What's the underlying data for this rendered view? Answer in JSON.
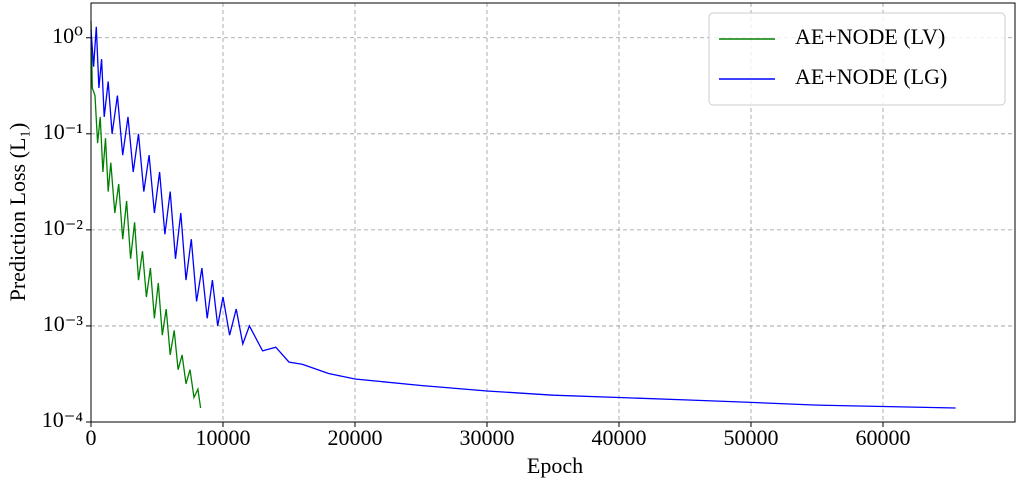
{
  "chart_data": {
    "type": "line",
    "x_label": "Epoch",
    "y_label": "Prediction Loss (L₁)",
    "xlim": [
      0,
      70000
    ],
    "ylim": [
      0.0001,
      2.3
    ],
    "log_y": true,
    "grid": true,
    "legend": "upper right",
    "xticks": [
      0,
      10000,
      20000,
      30000,
      40000,
      50000,
      60000
    ],
    "yticks": [
      {
        "value": 0.0001,
        "label": "10⁻⁴"
      },
      {
        "value": 0.001,
        "label": "10⁻³"
      },
      {
        "value": 0.01,
        "label": "10⁻²"
      },
      {
        "value": 0.1,
        "label": "10⁻¹"
      },
      {
        "value": 1,
        "label": "10⁰"
      }
    ],
    "series": [
      {
        "name": "AE+NODE (LV)",
        "color": "#008000",
        "x": [
          0,
          100,
          300,
          500,
          700,
          900,
          1100,
          1300,
          1500,
          1800,
          2100,
          2400,
          2700,
          3000,
          3300,
          3600,
          3900,
          4200,
          4500,
          4800,
          5100,
          5400,
          5700,
          6000,
          6300,
          6600,
          6900,
          7200,
          7500,
          7800,
          8100,
          8300
        ],
        "values": [
          1.5,
          0.3,
          0.25,
          0.08,
          0.15,
          0.04,
          0.09,
          0.025,
          0.05,
          0.015,
          0.03,
          0.008,
          0.02,
          0.005,
          0.012,
          0.003,
          0.006,
          0.002,
          0.004,
          0.0012,
          0.0028,
          0.0008,
          0.0015,
          0.0005,
          0.0009,
          0.00035,
          0.0005,
          0.00025,
          0.00035,
          0.00018,
          0.00022,
          0.00014
        ]
      },
      {
        "name": "AE+NODE (LG)",
        "color": "#0000ff",
        "x": [
          0,
          200,
          400,
          600,
          800,
          1000,
          1300,
          1600,
          2000,
          2400,
          2800,
          3200,
          3600,
          4000,
          4400,
          4800,
          5200,
          5600,
          6000,
          6400,
          6800,
          7200,
          7600,
          8000,
          8400,
          8800,
          9200,
          9600,
          10000,
          10500,
          11000,
          11500,
          12000,
          13000,
          14000,
          15000,
          16000,
          18000,
          20000,
          25000,
          30000,
          35000,
          40000,
          45000,
          50000,
          55000,
          60000,
          65500
        ],
        "values": [
          1.2,
          0.5,
          1.3,
          0.3,
          0.6,
          0.15,
          0.35,
          0.1,
          0.25,
          0.06,
          0.15,
          0.04,
          0.1,
          0.025,
          0.06,
          0.015,
          0.04,
          0.009,
          0.025,
          0.005,
          0.015,
          0.003,
          0.008,
          0.0018,
          0.004,
          0.0012,
          0.003,
          0.001,
          0.002,
          0.0008,
          0.0015,
          0.00065,
          0.001,
          0.00055,
          0.0006,
          0.00042,
          0.0004,
          0.00032,
          0.00028,
          0.00024,
          0.00021,
          0.00019,
          0.00018,
          0.00017,
          0.00016,
          0.00015,
          0.000145,
          0.00014
        ]
      }
    ]
  }
}
